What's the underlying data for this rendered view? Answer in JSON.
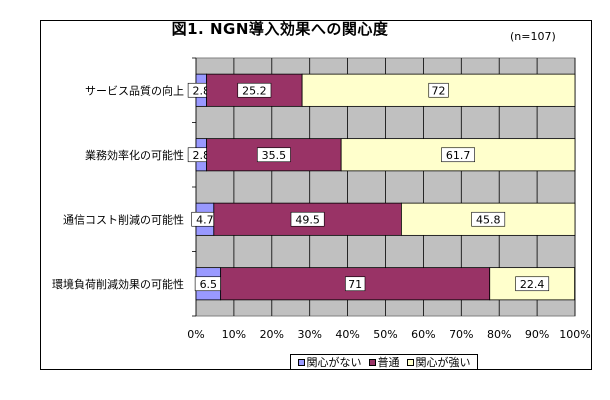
{
  "chart_data": {
    "type": "bar",
    "orientation": "horizontal",
    "stacked": true,
    "title": "図1. NGN導入効果への関心度",
    "note": "(n=107)",
    "categories": [
      "サービス品質の向上",
      "業務効率化の可能性",
      "通信コスト削減の可能性",
      "環境負荷削減効果の可能性"
    ],
    "series": [
      {
        "name": "関心がない",
        "values": [
          2.8,
          2.8,
          4.7,
          6.5
        ],
        "labels": [
          "2.8",
          "2.8",
          "4.7",
          "6.5"
        ],
        "color": "#9999ff",
        "label_color": "#000000"
      },
      {
        "name": "普通",
        "values": [
          25.2,
          35.5,
          49.5,
          71
        ],
        "labels": [
          "25.2",
          "35.5",
          "49.5",
          "71"
        ],
        "color": "#993366",
        "label_color": "#000000"
      },
      {
        "name": "関心が強い",
        "values": [
          72,
          61.7,
          45.8,
          22.4
        ],
        "labels": [
          "72",
          "61.7",
          "45.8",
          "22.4"
        ],
        "color": "#ffffcc",
        "label_color": "#000000"
      }
    ],
    "xticks": [
      "0%",
      "10%",
      "20%",
      "30%",
      "40%",
      "50%",
      "60%",
      "70%",
      "80%",
      "90%",
      "100%"
    ],
    "xlim": [
      0,
      100
    ],
    "plot_background": "#c0c0c0",
    "grid": true,
    "legend_position": "bottom"
  }
}
